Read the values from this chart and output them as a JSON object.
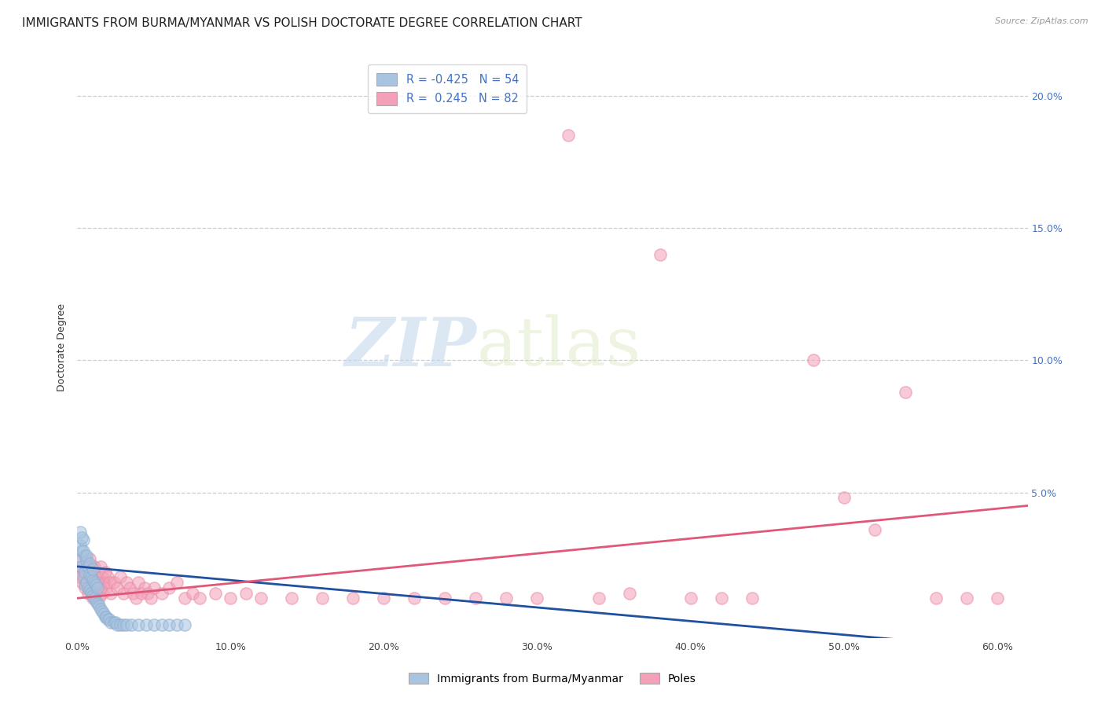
{
  "title": "IMMIGRANTS FROM BURMA/MYANMAR VS POLISH DOCTORATE DEGREE CORRELATION CHART",
  "source": "Source: ZipAtlas.com",
  "ylabel": "Doctorate Degree",
  "xlim": [
    0,
    0.62
  ],
  "ylim": [
    -0.005,
    0.215
  ],
  "x_ticks": [
    0.0,
    0.1,
    0.2,
    0.3,
    0.4,
    0.5,
    0.6
  ],
  "x_tick_labels": [
    "0.0%",
    "10.0%",
    "20.0%",
    "30.0%",
    "40.0%",
    "50.0%",
    "60.0%"
  ],
  "y_ticks": [
    0.0,
    0.05,
    0.1,
    0.15,
    0.2
  ],
  "y_tick_labels": [
    "",
    "5.0%",
    "10.0%",
    "15.0%",
    "20.0%"
  ],
  "blue_R": -0.425,
  "blue_N": 54,
  "pink_R": 0.245,
  "pink_N": 82,
  "blue_color": "#a8c4e0",
  "pink_color": "#f4a0b8",
  "blue_edge_color": "#90b0d0",
  "pink_edge_color": "#e890a8",
  "blue_line_color": "#2050a0",
  "pink_line_color": "#e05878",
  "blue_line_x": [
    0.0,
    0.62
  ],
  "blue_line_y": [
    0.022,
    -0.01
  ],
  "pink_line_x": [
    0.0,
    0.62
  ],
  "pink_line_y": [
    0.01,
    0.045
  ],
  "blue_scatter_x": [
    0.001,
    0.002,
    0.003,
    0.003,
    0.004,
    0.004,
    0.005,
    0.005,
    0.005,
    0.006,
    0.006,
    0.007,
    0.007,
    0.008,
    0.008,
    0.009,
    0.009,
    0.01,
    0.01,
    0.011,
    0.011,
    0.012,
    0.012,
    0.013,
    0.013,
    0.014,
    0.015,
    0.016,
    0.017,
    0.018,
    0.019,
    0.02,
    0.021,
    0.022,
    0.024,
    0.025,
    0.026,
    0.028,
    0.03,
    0.032,
    0.035,
    0.04,
    0.045,
    0.05,
    0.055,
    0.06,
    0.065,
    0.07,
    0.002,
    0.003,
    0.004,
    0.006,
    0.008,
    0.01
  ],
  "blue_scatter_y": [
    0.025,
    0.03,
    0.022,
    0.028,
    0.018,
    0.032,
    0.015,
    0.02,
    0.026,
    0.016,
    0.024,
    0.014,
    0.022,
    0.013,
    0.019,
    0.012,
    0.018,
    0.011,
    0.017,
    0.01,
    0.016,
    0.009,
    0.015,
    0.008,
    0.014,
    0.007,
    0.006,
    0.005,
    0.004,
    0.003,
    0.003,
    0.002,
    0.002,
    0.001,
    0.001,
    0.001,
    0.0,
    0.0,
    0.0,
    0.0,
    0.0,
    0.0,
    0.0,
    0.0,
    0.0,
    0.0,
    0.0,
    0.0,
    0.035,
    0.033,
    0.028,
    0.026,
    0.023,
    0.021
  ],
  "pink_scatter_x": [
    0.001,
    0.002,
    0.003,
    0.003,
    0.004,
    0.005,
    0.005,
    0.006,
    0.006,
    0.007,
    0.007,
    0.008,
    0.008,
    0.009,
    0.009,
    0.01,
    0.01,
    0.011,
    0.011,
    0.012,
    0.012,
    0.013,
    0.013,
    0.014,
    0.014,
    0.015,
    0.015,
    0.016,
    0.016,
    0.017,
    0.018,
    0.019,
    0.02,
    0.021,
    0.022,
    0.024,
    0.026,
    0.028,
    0.03,
    0.032,
    0.034,
    0.036,
    0.038,
    0.04,
    0.042,
    0.044,
    0.046,
    0.048,
    0.05,
    0.055,
    0.06,
    0.065,
    0.07,
    0.075,
    0.08,
    0.09,
    0.1,
    0.11,
    0.12,
    0.14,
    0.16,
    0.18,
    0.2,
    0.22,
    0.24,
    0.26,
    0.28,
    0.3,
    0.32,
    0.34,
    0.36,
    0.38,
    0.4,
    0.42,
    0.44,
    0.48,
    0.5,
    0.52,
    0.54,
    0.56,
    0.58,
    0.6
  ],
  "pink_scatter_y": [
    0.018,
    0.022,
    0.016,
    0.025,
    0.02,
    0.014,
    0.018,
    0.022,
    0.016,
    0.012,
    0.02,
    0.025,
    0.018,
    0.014,
    0.022,
    0.01,
    0.018,
    0.014,
    0.022,
    0.016,
    0.012,
    0.018,
    0.014,
    0.01,
    0.016,
    0.022,
    0.014,
    0.018,
    0.012,
    0.016,
    0.02,
    0.014,
    0.018,
    0.016,
    0.012,
    0.016,
    0.014,
    0.018,
    0.012,
    0.016,
    0.014,
    0.012,
    0.01,
    0.016,
    0.012,
    0.014,
    0.012,
    0.01,
    0.014,
    0.012,
    0.014,
    0.016,
    0.01,
    0.012,
    0.01,
    0.012,
    0.01,
    0.012,
    0.01,
    0.01,
    0.01,
    0.01,
    0.01,
    0.01,
    0.01,
    0.01,
    0.01,
    0.01,
    0.185,
    0.01,
    0.012,
    0.14,
    0.01,
    0.01,
    0.01,
    0.1,
    0.048,
    0.036,
    0.088,
    0.01,
    0.01,
    0.01
  ],
  "watermark_zip": "ZIP",
  "watermark_atlas": "atlas",
  "legend_label_blue": "Immigrants from Burma/Myanmar",
  "legend_label_pink": "Poles",
  "title_fontsize": 11,
  "axis_label_fontsize": 9,
  "tick_fontsize": 9,
  "tick_color_right": "#4472c4",
  "legend_text_color": "#4472c4",
  "background_color": "#ffffff",
  "marker_size": 120,
  "marker_alpha": 0.55
}
